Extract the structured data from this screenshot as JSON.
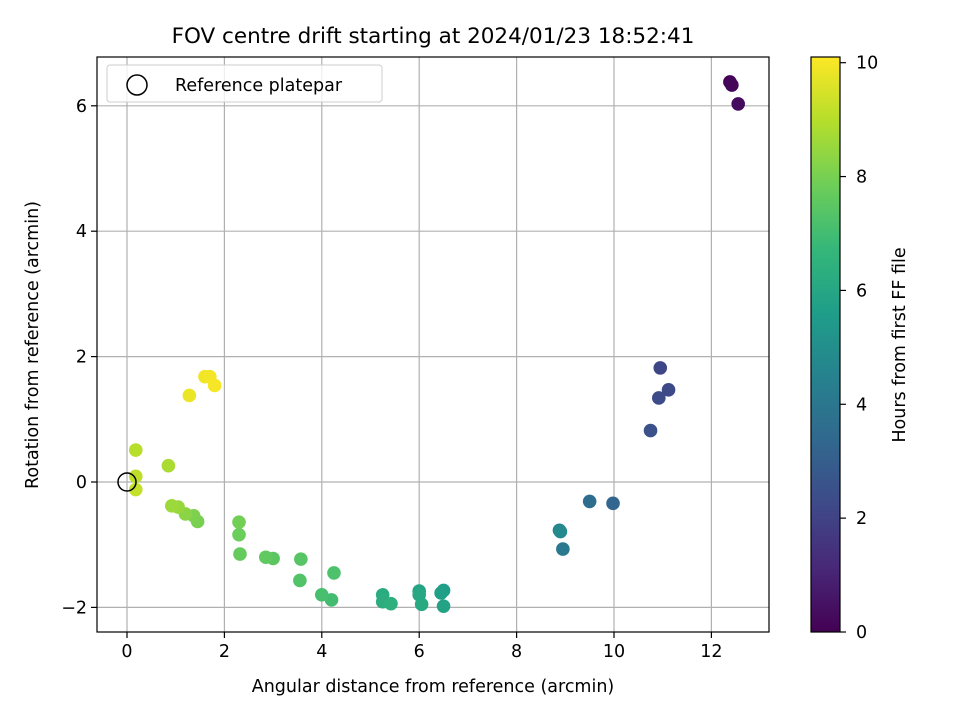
{
  "chart_data": {
    "type": "scatter",
    "title": "FOV centre drift starting at 2024/01/23 18:52:41",
    "xlabel": "Angular distance from reference (arcmin)",
    "ylabel": "Rotation from reference (arcmin)",
    "xlim": [
      -0.6,
      13.2
    ],
    "ylim": [
      -2.4,
      6.8
    ],
    "xticks": [
      0,
      2,
      4,
      6,
      8,
      10,
      12
    ],
    "yticks": [
      -2,
      0,
      2,
      4,
      6
    ],
    "grid": true,
    "legend": {
      "placement": "top-left",
      "entries": [
        "Reference platepar"
      ]
    },
    "reference": {
      "x": 0,
      "y": 0
    },
    "colorbar": {
      "label": "Hours from first FF file",
      "min": 0,
      "max": 10.1,
      "ticks": [
        0,
        2,
        4,
        6,
        8,
        10
      ],
      "colormap": [
        "#440154",
        "#482878",
        "#3e4a89",
        "#31688e",
        "#26828e",
        "#1f9e89",
        "#35b779",
        "#6ece58",
        "#b5de2b",
        "#fde725"
      ]
    },
    "points": [
      {
        "x": 12.38,
        "y": 6.38,
        "h": 0.05
      },
      {
        "x": 12.42,
        "y": 6.33,
        "h": 0.15
      },
      {
        "x": 12.55,
        "y": 6.03,
        "h": 0.3
      },
      {
        "x": 10.95,
        "y": 1.82,
        "h": 2.1
      },
      {
        "x": 11.12,
        "y": 1.47,
        "h": 2.2
      },
      {
        "x": 10.92,
        "y": 1.34,
        "h": 2.3
      },
      {
        "x": 10.75,
        "y": 0.82,
        "h": 2.5
      },
      {
        "x": 9.98,
        "y": -0.34,
        "h": 3.3
      },
      {
        "x": 9.5,
        "y": -0.31,
        "h": 3.6
      },
      {
        "x": 8.95,
        "y": -1.07,
        "h": 4.1
      },
      {
        "x": 8.88,
        "y": -0.77,
        "h": 4.6
      },
      {
        "x": 8.9,
        "y": -0.79,
        "h": 4.8
      },
      {
        "x": 6.5,
        "y": -1.73,
        "h": 5.6
      },
      {
        "x": 6.45,
        "y": -1.77,
        "h": 5.7
      },
      {
        "x": 6.5,
        "y": -1.98,
        "h": 5.8
      },
      {
        "x": 6.0,
        "y": -1.74,
        "h": 5.9
      },
      {
        "x": 6.0,
        "y": -1.8,
        "h": 6.0
      },
      {
        "x": 6.05,
        "y": -1.95,
        "h": 6.1
      },
      {
        "x": 5.25,
        "y": -1.8,
        "h": 6.2
      },
      {
        "x": 5.25,
        "y": -1.91,
        "h": 6.3
      },
      {
        "x": 5.42,
        "y": -1.94,
        "h": 6.4
      },
      {
        "x": 4.2,
        "y": -1.88,
        "h": 7.0
      },
      {
        "x": 4.0,
        "y": -1.8,
        "h": 7.1
      },
      {
        "x": 4.25,
        "y": -1.45,
        "h": 7.2
      },
      {
        "x": 3.55,
        "y": -1.57,
        "h": 7.3
      },
      {
        "x": 3.57,
        "y": -1.23,
        "h": 7.4
      },
      {
        "x": 3.0,
        "y": -1.22,
        "h": 7.5
      },
      {
        "x": 2.85,
        "y": -1.2,
        "h": 7.6
      },
      {
        "x": 2.32,
        "y": -1.15,
        "h": 7.7
      },
      {
        "x": 2.3,
        "y": -0.84,
        "h": 7.8
      },
      {
        "x": 2.3,
        "y": -0.64,
        "h": 7.9
      },
      {
        "x": 1.45,
        "y": -0.63,
        "h": 8.0
      },
      {
        "x": 1.37,
        "y": -0.54,
        "h": 8.1
      },
      {
        "x": 1.2,
        "y": -0.51,
        "h": 8.3
      },
      {
        "x": 1.05,
        "y": -0.4,
        "h": 8.5
      },
      {
        "x": 0.92,
        "y": -0.38,
        "h": 8.6
      },
      {
        "x": 0.85,
        "y": 0.26,
        "h": 8.8
      },
      {
        "x": 0.18,
        "y": 0.51,
        "h": 9.0
      },
      {
        "x": 0.18,
        "y": 0.09,
        "h": 9.1
      },
      {
        "x": 0.18,
        "y": -0.12,
        "h": 9.2
      },
      {
        "x": 1.28,
        "y": 1.38,
        "h": 9.8
      },
      {
        "x": 1.6,
        "y": 1.68,
        "h": 9.9
      },
      {
        "x": 1.7,
        "y": 1.68,
        "h": 9.95
      },
      {
        "x": 1.8,
        "y": 1.54,
        "h": 10.0
      }
    ]
  }
}
